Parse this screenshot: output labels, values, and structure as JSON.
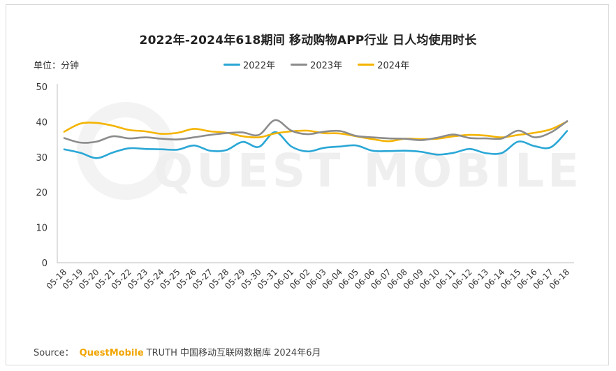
{
  "title": "2022年-2024年618期间 移动购物APP行业 日人均使用时长",
  "unit_label": "单位：分钟",
  "watermark": "QUEST MOBILE",
  "source": {
    "prefix": "Source：",
    "brand": "QuestMobile",
    "rest": "TRUTH 中国移动互联网数据库 2024年6月"
  },
  "colors": {
    "2022": "#2aa7d6",
    "2023": "#8c8c8c",
    "2024": "#f4b400"
  },
  "chart_data": {
    "type": "line",
    "title": "2022年-2024年618期间 移动购物APP行业 日人均使用时长",
    "ylabel": "单位：分钟",
    "ylim": [
      0,
      50
    ],
    "yticks": [
      0,
      10,
      20,
      30,
      40,
      50
    ],
    "grid": false,
    "legend": "top-center",
    "x": [
      "05-18",
      "05-19",
      "05-20",
      "05-21",
      "05-22",
      "05-23",
      "05-24",
      "05-25",
      "05-26",
      "05-27",
      "05-28",
      "05-29",
      "05-30",
      "05-31",
      "06-01",
      "06-02",
      "06-03",
      "06-04",
      "06-05",
      "06-06",
      "06-07",
      "06-08",
      "06-09",
      "06-10",
      "06-11",
      "06-12",
      "06-13",
      "06-14",
      "06-15",
      "06-16",
      "06-17",
      "06-18"
    ],
    "series": [
      {
        "name": "2022年",
        "values": [
          32.2,
          31.2,
          29.7,
          31.3,
          32.5,
          32.3,
          32.2,
          32.1,
          33.3,
          31.8,
          32.0,
          34.3,
          32.9,
          37.1,
          33.0,
          31.6,
          32.6,
          33.0,
          33.3,
          31.8,
          31.7,
          31.8,
          31.5,
          30.7,
          31.2,
          32.3,
          31.1,
          31.2,
          34.4,
          33.1,
          32.8,
          37.4
        ]
      },
      {
        "name": "2023年",
        "values": [
          35.4,
          34.1,
          34.4,
          35.9,
          35.3,
          35.6,
          35.2,
          35.0,
          35.6,
          36.3,
          36.8,
          37.0,
          36.3,
          40.5,
          37.5,
          36.5,
          37.2,
          37.4,
          36.0,
          35.6,
          35.3,
          35.2,
          34.8,
          35.5,
          36.4,
          35.4,
          35.3,
          35.3,
          37.5,
          35.6,
          37.0,
          40.2
        ]
      },
      {
        "name": "2024年",
        "values": [
          37.2,
          39.5,
          39.7,
          38.9,
          37.7,
          37.3,
          36.6,
          36.9,
          38.0,
          37.3,
          36.9,
          35.9,
          35.6,
          36.7,
          37.3,
          37.5,
          36.8,
          36.7,
          35.9,
          35.1,
          34.5,
          35.2,
          35.1,
          35.2,
          35.9,
          36.3,
          36.1,
          35.6,
          36.3,
          36.9,
          37.9,
          40.1
        ]
      }
    ]
  }
}
